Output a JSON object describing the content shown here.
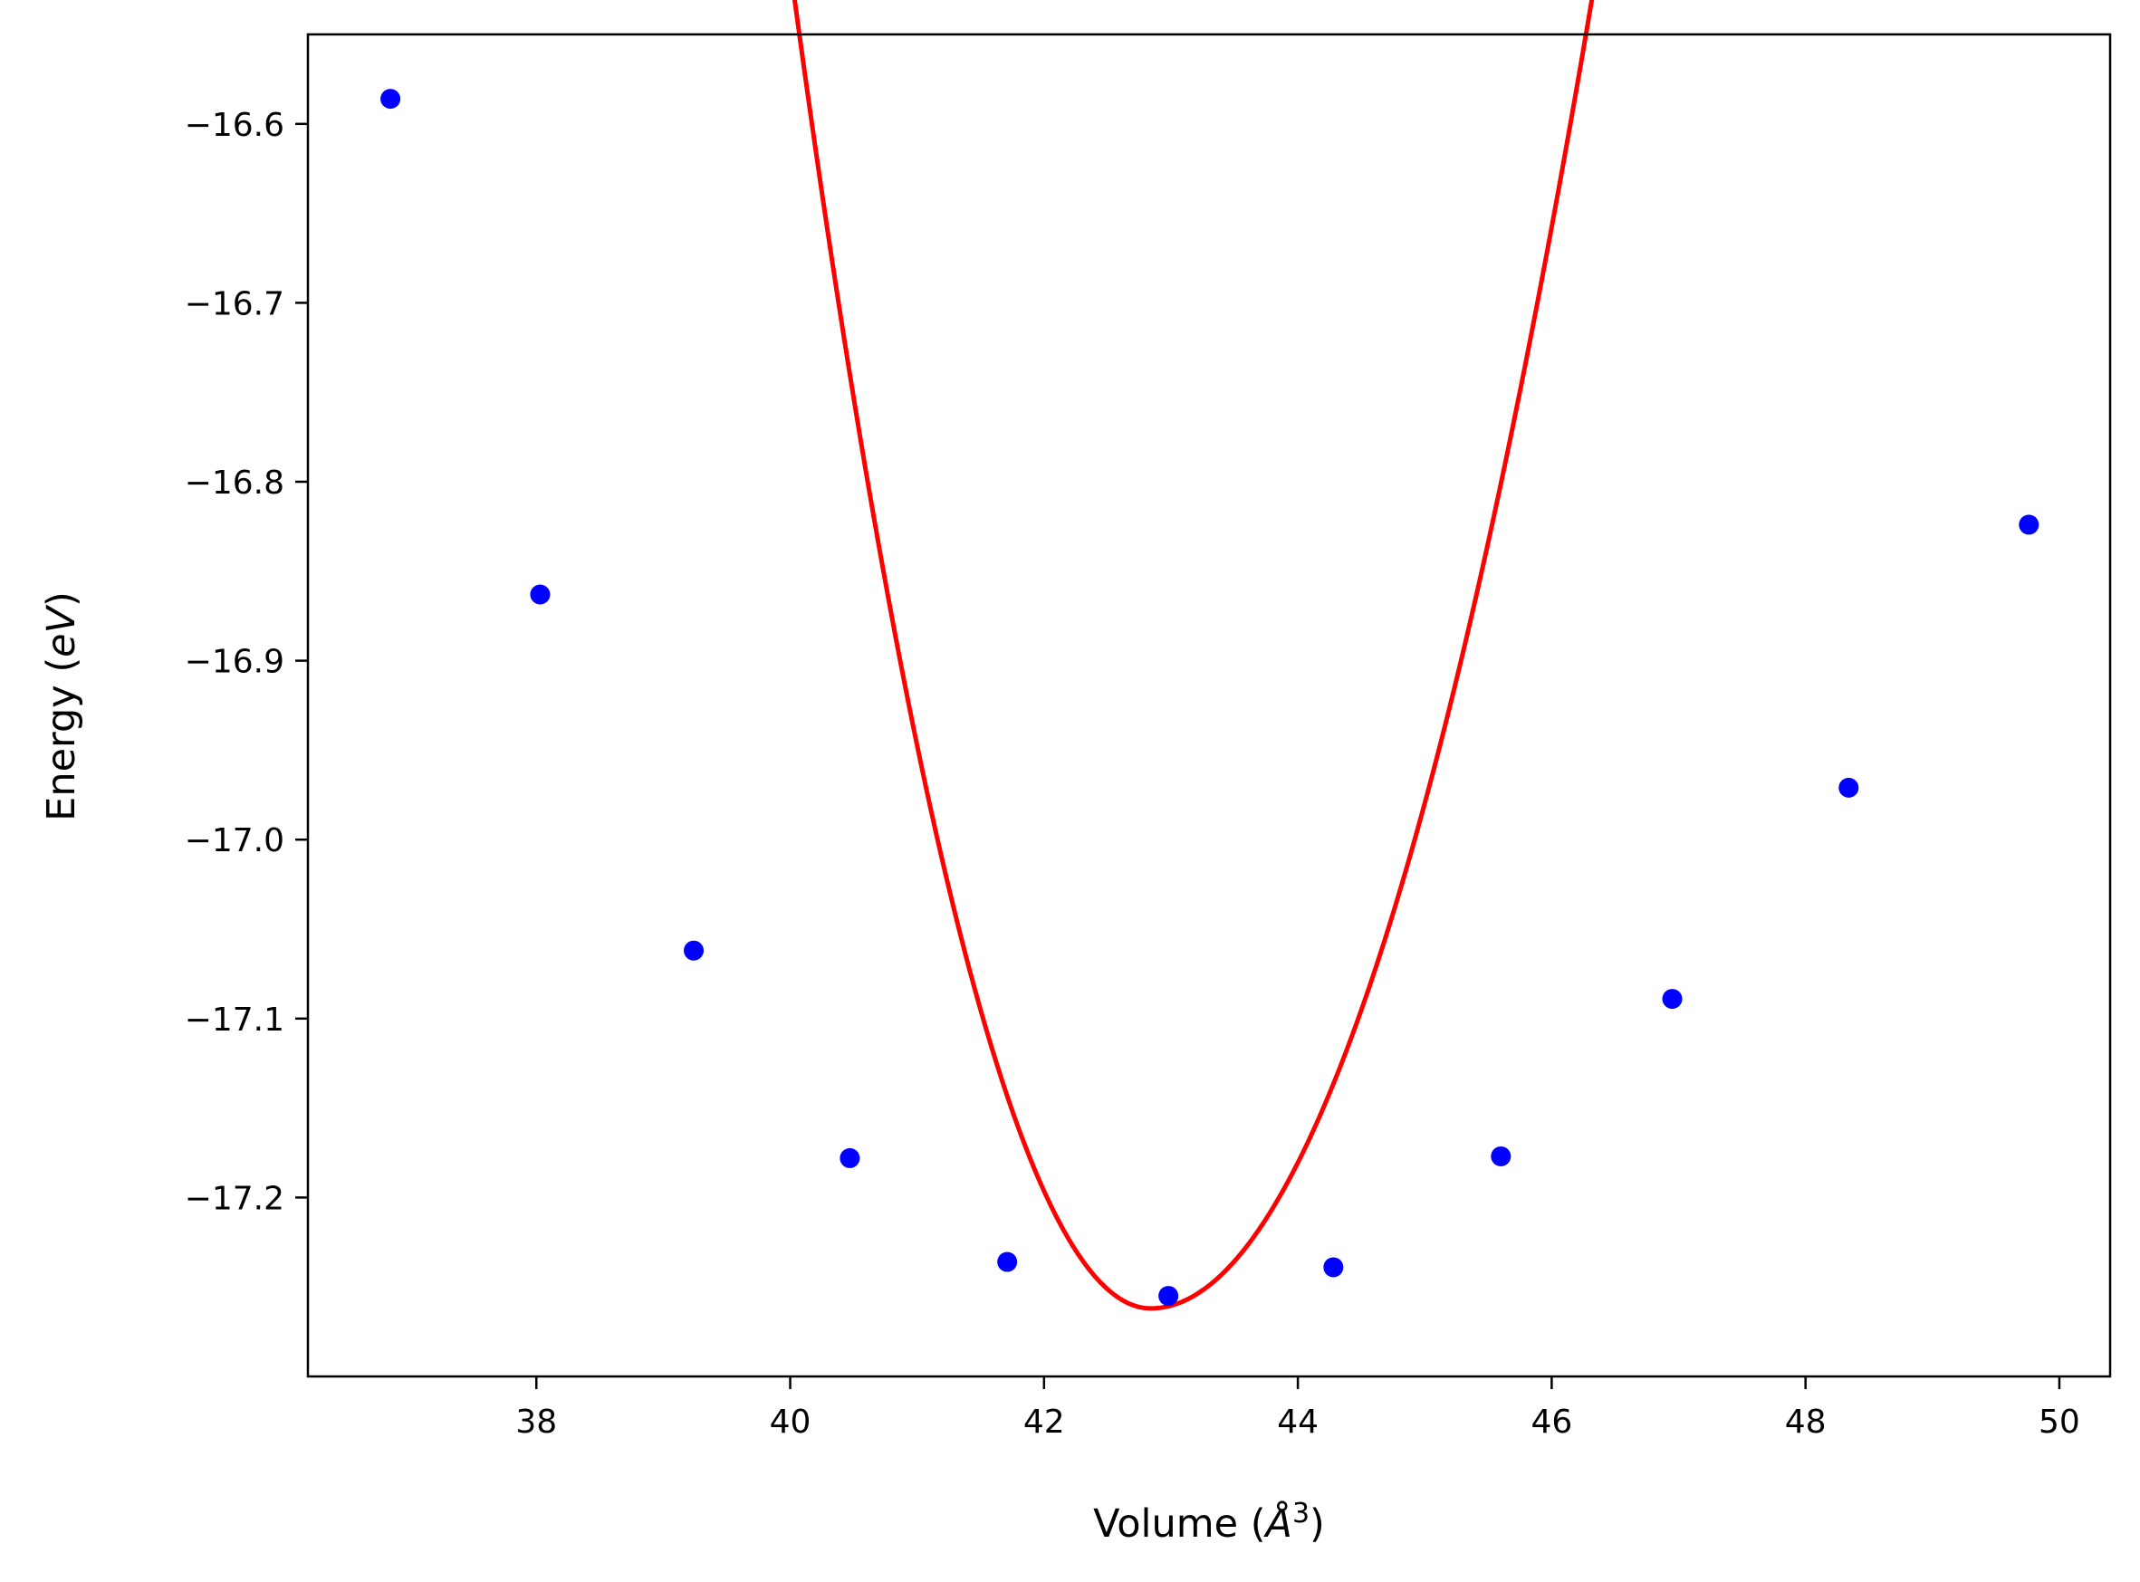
{
  "chart_data": {
    "type": "scatter",
    "title": "",
    "xlabel_main": "Volume (",
    "xlabel_unit": "Å",
    "xlabel_exp": "3",
    "xlabel_close": ")",
    "ylabel_main": "Energy (",
    "ylabel_unit": "eV",
    "ylabel_close": ")",
    "xlim": [
      36.2,
      50.4
    ],
    "ylim": [
      -17.3,
      -16.55
    ],
    "xticks": [
      38,
      40,
      42,
      44,
      46,
      48,
      50
    ],
    "yticks": [
      -16.6,
      -16.7,
      -16.8,
      -16.9,
      -17.0,
      -17.1,
      -17.2
    ],
    "ytick_labels": [
      "−16.6",
      "−16.7",
      "−16.8",
      "−16.9",
      "−17.0",
      "−17.1",
      "−17.2"
    ],
    "grid": false,
    "series": [
      {
        "style": "markers",
        "color": "#0000ff",
        "x": [
          36.85,
          38.03,
          39.24,
          40.47,
          41.71,
          42.98,
          44.28,
          45.6,
          46.95,
          48.34,
          49.76
        ],
        "y": [
          -16.586,
          -16.863,
          -17.062,
          -17.178,
          -17.236,
          -17.255,
          -17.239,
          -17.177,
          -17.089,
          -16.971,
          -16.824
        ]
      },
      {
        "style": "line",
        "color": "#ff0000",
        "fit": {
          "type": "quadratic",
          "x0": 42.84,
          "y_min": -17.262,
          "curvature_left": 0.09295,
          "curvature_right": 0.06052
        },
        "x_range": [
          36.85,
          49.76
        ]
      }
    ]
  }
}
